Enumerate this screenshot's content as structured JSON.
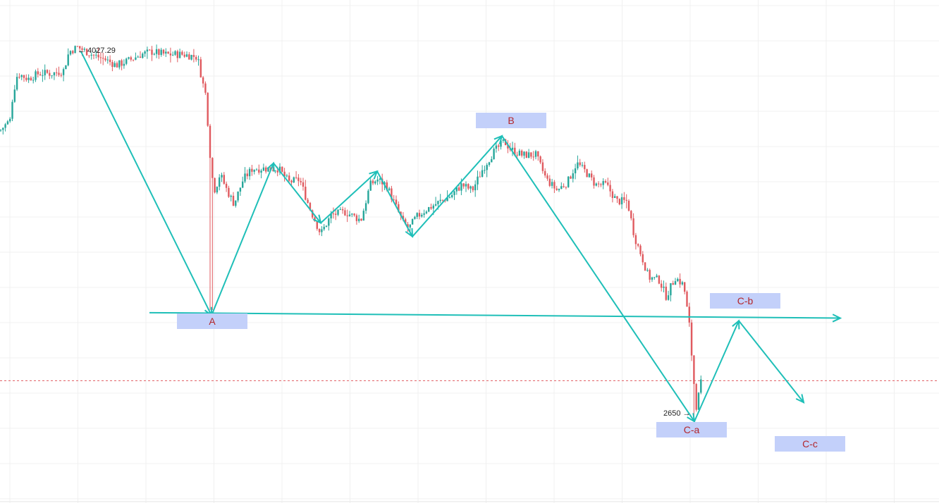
{
  "chart_data": {
    "type": "candlestick",
    "y_range": [
      2350,
      4200
    ],
    "x_range": [
      0,
      1332
    ],
    "grid": true,
    "colors": {
      "up": "#26a69a",
      "down": "#e05a5f",
      "wave": "#1fbfb8",
      "label_bg": "#c3d0fa",
      "label_text": "#b3262b",
      "current_price_line": "#e05a5f",
      "grid": "#f0f0f0"
    },
    "current_price": 2800,
    "annotations": {
      "high": {
        "text": "← 4027.29",
        "value": 4027.29
      },
      "low": {
        "text": "2650 →",
        "value": 2650
      }
    },
    "wave_labels": [
      {
        "id": "A",
        "text": "A"
      },
      {
        "id": "B",
        "text": "B"
      },
      {
        "id": "Cb",
        "text": "C-b"
      },
      {
        "id": "Ca",
        "text": "C-a"
      },
      {
        "id": "Cc",
        "text": "C-c"
      }
    ],
    "price_path": [
      [
        0,
        3720
      ],
      [
        15,
        3760
      ],
      [
        18,
        3850
      ],
      [
        25,
        3930
      ],
      [
        40,
        3910
      ],
      [
        55,
        3930
      ],
      [
        75,
        3930
      ],
      [
        90,
        3940
      ],
      [
        98,
        4010
      ],
      [
        110,
        4027
      ],
      [
        130,
        4000
      ],
      [
        150,
        3980
      ],
      [
        165,
        3960
      ],
      [
        185,
        3980
      ],
      [
        200,
        4000
      ],
      [
        215,
        4010
      ],
      [
        235,
        4000
      ],
      [
        260,
        4000
      ],
      [
        280,
        3990
      ],
      [
        288,
        3890
      ],
      [
        292,
        3850
      ],
      [
        300,
        3560
      ],
      [
        305,
        3500
      ],
      [
        312,
        3560
      ],
      [
        322,
        3500
      ],
      [
        332,
        3450
      ],
      [
        345,
        3540
      ],
      [
        358,
        3580
      ],
      [
        375,
        3580
      ],
      [
        395,
        3580
      ],
      [
        410,
        3530
      ],
      [
        425,
        3540
      ],
      [
        440,
        3430
      ],
      [
        455,
        3340
      ],
      [
        470,
        3410
      ],
      [
        490,
        3420
      ],
      [
        512,
        3390
      ],
      [
        525,
        3520
      ],
      [
        535,
        3540
      ],
      [
        548,
        3520
      ],
      [
        560,
        3450
      ],
      [
        572,
        3380
      ],
      [
        580,
        3360
      ],
      [
        590,
        3400
      ],
      [
        605,
        3430
      ],
      [
        625,
        3460
      ],
      [
        640,
        3480
      ],
      [
        655,
        3520
      ],
      [
        670,
        3500
      ],
      [
        685,
        3580
      ],
      [
        700,
        3640
      ],
      [
        715,
        3680
      ],
      [
        725,
        3650
      ],
      [
        740,
        3630
      ],
      [
        760,
        3630
      ],
      [
        775,
        3540
      ],
      [
        790,
        3500
      ],
      [
        805,
        3530
      ],
      [
        818,
        3600
      ],
      [
        830,
        3570
      ],
      [
        845,
        3520
      ],
      [
        860,
        3520
      ],
      [
        875,
        3460
      ],
      [
        890,
        3460
      ],
      [
        900,
        3330
      ],
      [
        910,
        3260
      ],
      [
        920,
        3180
      ],
      [
        935,
        3170
      ],
      [
        945,
        3110
      ],
      [
        958,
        3180
      ],
      [
        970,
        3150
      ],
      [
        978,
        3000
      ],
      [
        984,
        2800
      ],
      [
        988,
        2700
      ],
      [
        994,
        2790
      ]
    ],
    "wave_path": [
      [
        115,
        4010
      ],
      [
        300,
        3040
      ],
      [
        388,
        3600
      ],
      [
        455,
        3380
      ],
      [
        535,
        3570
      ],
      [
        585,
        3330
      ],
      [
        712,
        3700
      ],
      [
        985,
        2650
      ],
      [
        1048,
        3020
      ],
      [
        1140,
        2720
      ]
    ],
    "horizontal_ray": [
      [
        212,
        3050
      ],
      [
        1192,
        3030
      ]
    ]
  }
}
